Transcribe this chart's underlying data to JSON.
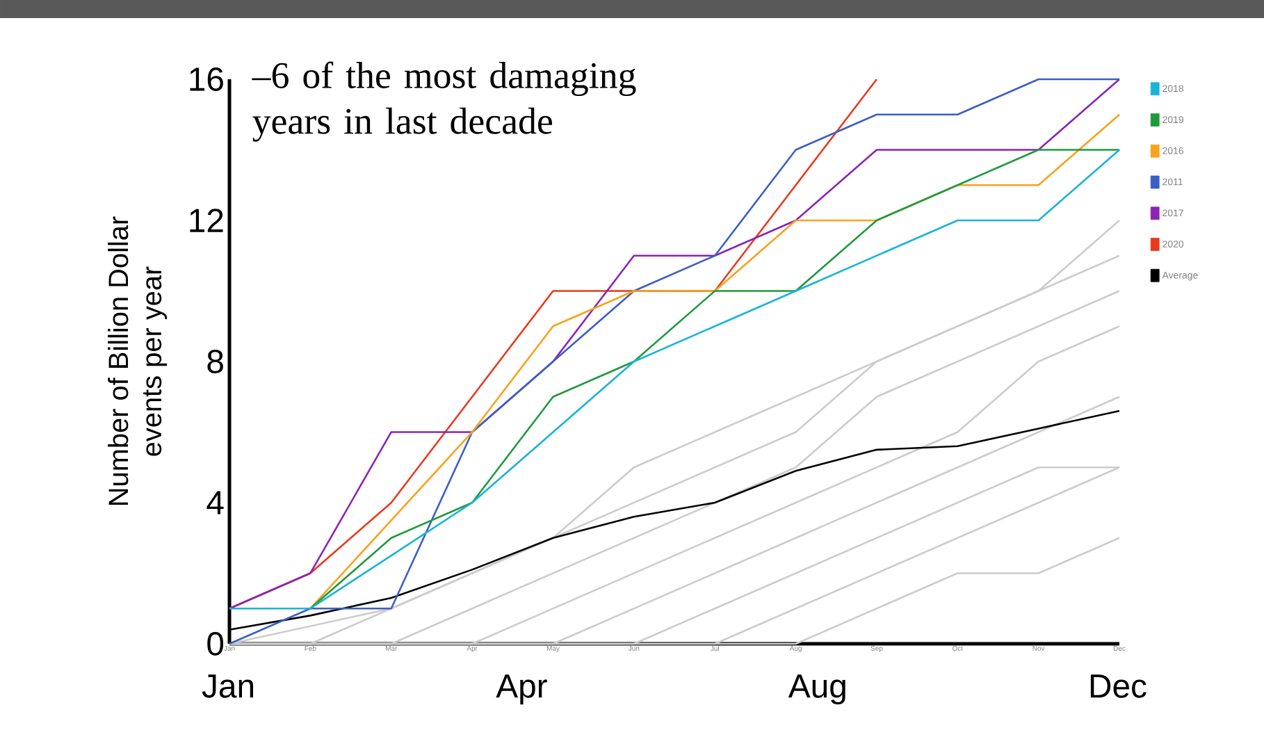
{
  "chart_data": {
    "type": "line",
    "ylabel": "Number of Billion Dollar events per year",
    "categories": [
      "Jan",
      "Feb",
      "Mar",
      "Apr",
      "May",
      "Jun",
      "Jul",
      "Aug",
      "Sep",
      "Oct",
      "Nov",
      "Dec"
    ],
    "ylim": [
      0,
      16
    ],
    "yticks": [
      0,
      4,
      8,
      12,
      16
    ],
    "legend": "right",
    "marker": "none",
    "line_style": "solid",
    "grid": false,
    "annotations": [
      "–6 of the most damaging years in last decade",
      "Jan",
      "Apr",
      "Aug",
      "Dec"
    ],
    "series": [
      {
        "color": "#cccccc",
        "values": [
          0,
          0.5,
          1,
          2,
          3,
          5,
          6,
          7,
          8,
          9,
          10,
          12
        ]
      },
      {
        "color": "#cccccc",
        "values": [
          0,
          0,
          1,
          2,
          3,
          4,
          5,
          6,
          8,
          9,
          10,
          11
        ]
      },
      {
        "color": "#cccccc",
        "values": [
          0,
          0,
          0,
          1,
          2,
          3,
          4,
          5,
          7,
          8,
          9,
          10
        ]
      },
      {
        "color": "#cccccc",
        "values": [
          0,
          0,
          0,
          0,
          1,
          2,
          3,
          4,
          5,
          6,
          8,
          9
        ]
      },
      {
        "color": "#cccccc",
        "values": [
          0,
          0,
          0,
          0,
          0,
          1,
          2,
          3,
          4,
          5,
          6,
          7
        ]
      },
      {
        "color": "#cccccc",
        "values": [
          0,
          0,
          0,
          0,
          0,
          0,
          1,
          2,
          3,
          4,
          5,
          5
        ]
      },
      {
        "color": "#cccccc",
        "values": [
          0,
          0,
          0,
          0,
          0,
          0,
          0,
          1,
          2,
          3,
          4,
          5
        ]
      },
      {
        "color": "#cccccc",
        "values": [
          0,
          0,
          0,
          0,
          0,
          0,
          0,
          0,
          1,
          2,
          2,
          3
        ]
      },
      {
        "name": "2018",
        "color": "#18b4d8",
        "values": [
          1,
          1,
          2.5,
          4,
          6,
          8,
          9,
          10,
          11,
          12,
          12,
          14
        ]
      },
      {
        "name": "2019",
        "color": "#1e9a3c",
        "values": [
          null,
          1,
          3,
          4,
          7,
          8,
          10,
          10,
          12,
          13,
          14,
          14
        ]
      },
      {
        "name": "2016",
        "color": "#f9a21c",
        "values": [
          null,
          1,
          3.5,
          6,
          9,
          10,
          10,
          12,
          12,
          13,
          13,
          15
        ]
      },
      {
        "name": "2011",
        "color": "#3a5fc4",
        "values": [
          0,
          1,
          1,
          6,
          8,
          10,
          11,
          14,
          15,
          15,
          16,
          16
        ]
      },
      {
        "name": "2017",
        "color": "#8a24b4",
        "values": [
          1,
          2,
          6,
          6,
          8,
          11,
          11,
          12,
          14,
          14,
          14,
          16
        ]
      },
      {
        "name": "2020",
        "color": "#e83a1c",
        "values": [
          1,
          2,
          4,
          7,
          10,
          10,
          10,
          13,
          16,
          null,
          null,
          null
        ]
      },
      {
        "name": "Average",
        "color": "#000000",
        "values": [
          0.4,
          0.8,
          1.3,
          2.1,
          3.0,
          3.6,
          4.0,
          4.9,
          5.5,
          5.6,
          6.1,
          6.6
        ]
      }
    ]
  }
}
